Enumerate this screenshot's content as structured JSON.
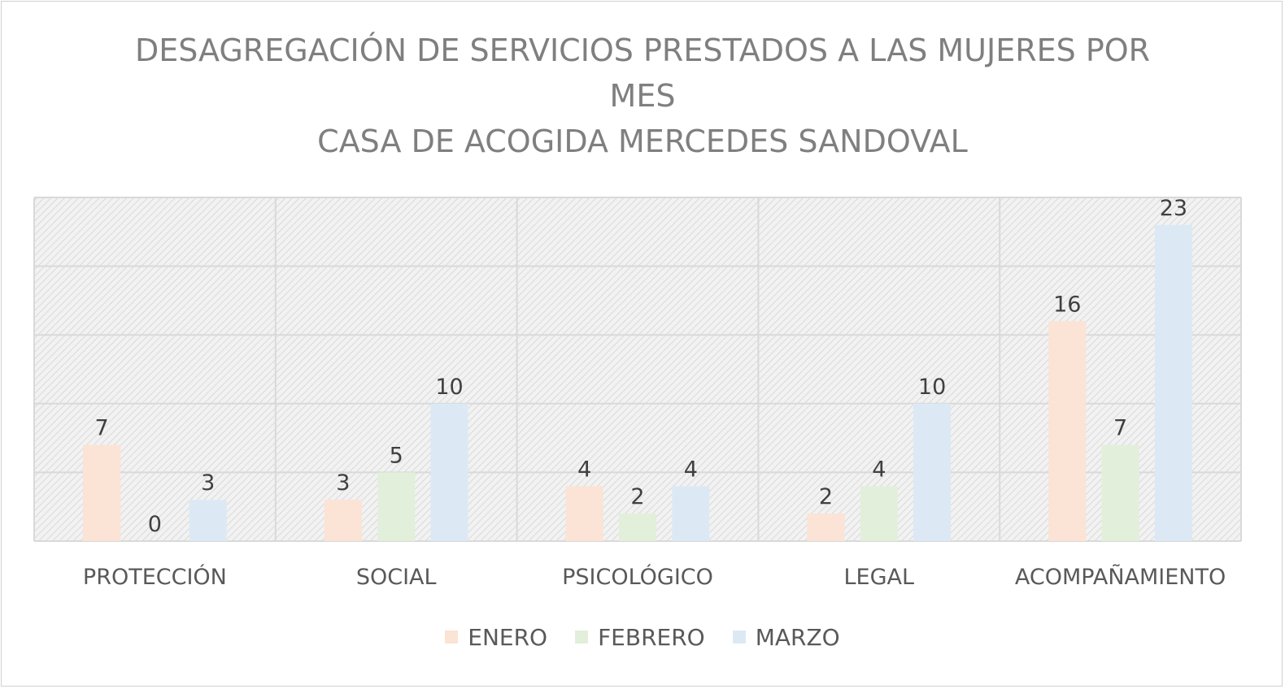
{
  "chart_data": {
    "type": "bar",
    "title_lines": [
      "DESAGREGACIÓN DE SERVICIOS PRESTADOS A LAS MUJERES POR",
      "MES",
      "CASA DE ACOGIDA MERCEDES SANDOVAL"
    ],
    "categories": [
      "PROTECCIÓN",
      "SOCIAL",
      "PSICOLÓGICO",
      "LEGAL",
      "ACOMPAÑAMIENTO"
    ],
    "series": [
      {
        "name": "ENERO",
        "values": [
          7,
          3,
          4,
          2,
          16
        ],
        "color": "#fbe3d6"
      },
      {
        "name": "FEBRERO",
        "values": [
          0,
          5,
          2,
          4,
          7
        ],
        "color": "#e2efda"
      },
      {
        "name": "MARZO",
        "values": [
          3,
          10,
          4,
          10,
          23
        ],
        "color": "#dce9f5"
      }
    ],
    "ylim": [
      0,
      25
    ],
    "grid_step": 5,
    "grid": true,
    "data_labels": true,
    "legend_position": "bottom",
    "plot_background": "hatched light gray"
  }
}
